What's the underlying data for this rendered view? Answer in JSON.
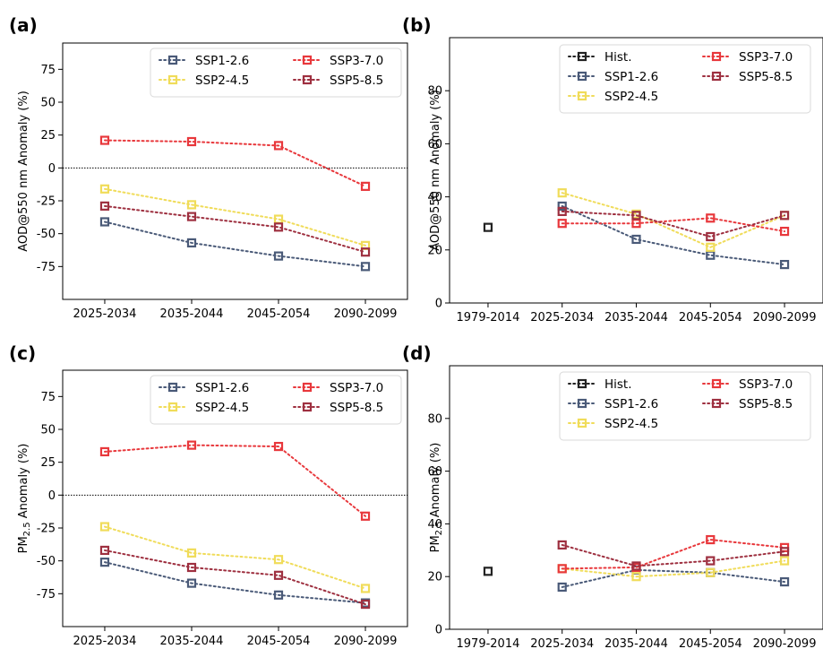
{
  "colors": {
    "hist": "#222222",
    "ssp126": "#4a5a78",
    "ssp245": "#f0dc5a",
    "ssp370": "#e8383c",
    "ssp585": "#9e3040"
  },
  "chart_data": [
    {
      "panel": "(a)",
      "type": "line",
      "ylabel": "AOD@550 nm Anomaly (%)",
      "ylabel_sub": "",
      "ylabel_post": "",
      "categories": [
        "2025-2034",
        "2035-2044",
        "2045-2054",
        "2090-2099"
      ],
      "ylim": [
        -100,
        95
      ],
      "yticks": [
        -75,
        -50,
        -25,
        0,
        25,
        50,
        75
      ],
      "zero_line": true,
      "series": [
        {
          "name": "SSP1-2.6",
          "key": "ssp126",
          "values": [
            -41,
            -57,
            -67,
            -75
          ]
        },
        {
          "name": "SSP2-4.5",
          "key": "ssp245",
          "values": [
            -16,
            -28,
            -39,
            -59
          ]
        },
        {
          "name": "SSP3-7.0",
          "key": "ssp370",
          "values": [
            21,
            20,
            17,
            -14
          ]
        },
        {
          "name": "SSP5-8.5",
          "key": "ssp585",
          "values": [
            -29,
            -37,
            -45,
            -64
          ]
        }
      ]
    },
    {
      "panel": "(b)",
      "type": "line",
      "ylabel": "AOD@550 nm Anomaly (%)",
      "ylabel_sub": "",
      "ylabel_post": "",
      "categories": [
        "1979-2014",
        "2025-2034",
        "2035-2044",
        "2045-2054",
        "2090-2099"
      ],
      "ylim": [
        0,
        100
      ],
      "yticks": [
        0,
        20,
        40,
        60,
        80
      ],
      "zero_line": false,
      "series": [
        {
          "name": "Hist.",
          "key": "hist",
          "values": [
            28.5,
            null,
            null,
            null,
            null
          ]
        },
        {
          "name": "SSP1-2.6",
          "key": "ssp126",
          "values": [
            null,
            36.5,
            24,
            18,
            14.5
          ]
        },
        {
          "name": "SSP2-4.5",
          "key": "ssp245",
          "values": [
            null,
            41.5,
            33.5,
            21,
            33
          ]
        },
        {
          "name": "SSP3-7.0",
          "key": "ssp370",
          "values": [
            null,
            30,
            30,
            32,
            27
          ]
        },
        {
          "name": "SSP5-8.5",
          "key": "ssp585",
          "values": [
            null,
            34.5,
            33,
            25,
            33
          ]
        }
      ]
    },
    {
      "panel": "(c)",
      "type": "line",
      "ylabel": "PM",
      "ylabel_sub": "2.5",
      "ylabel_post": " Anomaly (%)",
      "categories": [
        "2025-2034",
        "2035-2044",
        "2045-2054",
        "2090-2099"
      ],
      "ylim": [
        -100,
        95
      ],
      "yticks": [
        -75,
        -50,
        -25,
        0,
        25,
        50,
        75
      ],
      "zero_line": true,
      "series": [
        {
          "name": "SSP1-2.6",
          "key": "ssp126",
          "values": [
            -51,
            -67,
            -76,
            -82
          ]
        },
        {
          "name": "SSP2-4.5",
          "key": "ssp245",
          "values": [
            -24,
            -44,
            -49,
            -71
          ]
        },
        {
          "name": "SSP3-7.0",
          "key": "ssp370",
          "values": [
            33,
            38,
            37,
            -16
          ]
        },
        {
          "name": "SSP5-8.5",
          "key": "ssp585",
          "values": [
            -42,
            -55,
            -61,
            -83
          ]
        }
      ]
    },
    {
      "panel": "(d)",
      "type": "line",
      "ylabel": "PM",
      "ylabel_sub": "2.5",
      "ylabel_post": " Anomaly (%)",
      "categories": [
        "1979-2014",
        "2025-2034",
        "2035-2044",
        "2045-2054",
        "2090-2099"
      ],
      "ylim": [
        0,
        100
      ],
      "yticks": [
        0,
        20,
        40,
        60,
        80
      ],
      "zero_line": false,
      "series": [
        {
          "name": "Hist.",
          "key": "hist",
          "values": [
            22,
            null,
            null,
            null,
            null
          ]
        },
        {
          "name": "SSP1-2.6",
          "key": "ssp126",
          "values": [
            null,
            16,
            22.5,
            21.5,
            18
          ]
        },
        {
          "name": "SSP2-4.5",
          "key": "ssp245",
          "values": [
            null,
            23,
            20,
            21.5,
            26
          ]
        },
        {
          "name": "SSP3-7.0",
          "key": "ssp370",
          "values": [
            null,
            23,
            23.5,
            34,
            31
          ]
        },
        {
          "name": "SSP5-8.5",
          "key": "ssp585",
          "values": [
            null,
            32,
            24,
            26,
            29.5
          ]
        }
      ]
    }
  ]
}
